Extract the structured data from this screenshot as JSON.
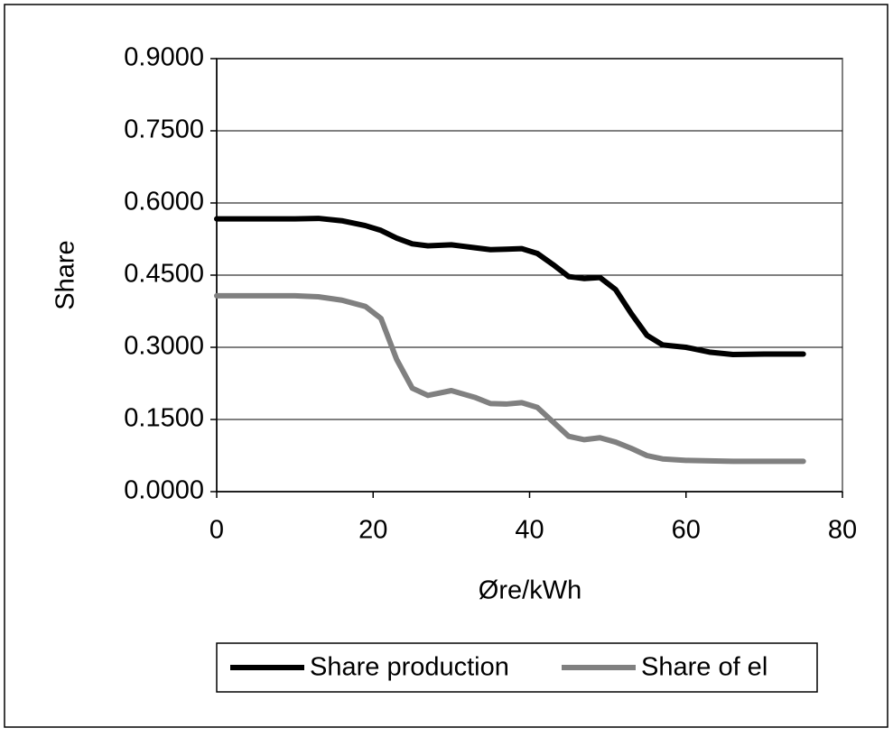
{
  "chart_data": {
    "type": "line",
    "x_label": "Øre/kWh",
    "y_label": "Share",
    "x": [
      0,
      5,
      10,
      13,
      16,
      19,
      21,
      23,
      25,
      27,
      30,
      33,
      35,
      37,
      39,
      41,
      43,
      45,
      47,
      49,
      51,
      53,
      55,
      57,
      60,
      63,
      66,
      70,
      75
    ],
    "series": [
      {
        "name": "Share production",
        "color": "#000000",
        "values": [
          0.567,
          0.567,
          0.567,
          0.568,
          0.563,
          0.553,
          0.543,
          0.527,
          0.515,
          0.511,
          0.513,
          0.507,
          0.503,
          0.504,
          0.505,
          0.495,
          0.472,
          0.447,
          0.443,
          0.445,
          0.42,
          0.37,
          0.325,
          0.305,
          0.3,
          0.29,
          0.285,
          0.286,
          0.286
        ]
      },
      {
        "name": "Share of el",
        "color": "#808080",
        "values": [
          0.407,
          0.407,
          0.407,
          0.405,
          0.398,
          0.385,
          0.36,
          0.275,
          0.215,
          0.2,
          0.21,
          0.196,
          0.183,
          0.182,
          0.185,
          0.175,
          0.145,
          0.115,
          0.108,
          0.112,
          0.103,
          0.09,
          0.075,
          0.068,
          0.065,
          0.064,
          0.063,
          0.063,
          0.063
        ]
      }
    ],
    "xlim": [
      0,
      80
    ],
    "xticks": [
      0,
      20,
      40,
      60,
      80
    ],
    "ylim": [
      0,
      0.9
    ],
    "yticks": [
      {
        "value": 0,
        "label": "0.0000"
      },
      {
        "value": 0.15,
        "label": "0.1500"
      },
      {
        "value": 0.3,
        "label": "0.3000"
      },
      {
        "value": 0.45,
        "label": "0.4500"
      },
      {
        "value": 0.6,
        "label": "0.6000"
      },
      {
        "value": 0.75,
        "label": "0.7500"
      },
      {
        "value": 0.9,
        "label": "0.9000"
      }
    ],
    "grid": true,
    "legend": "bottom"
  }
}
